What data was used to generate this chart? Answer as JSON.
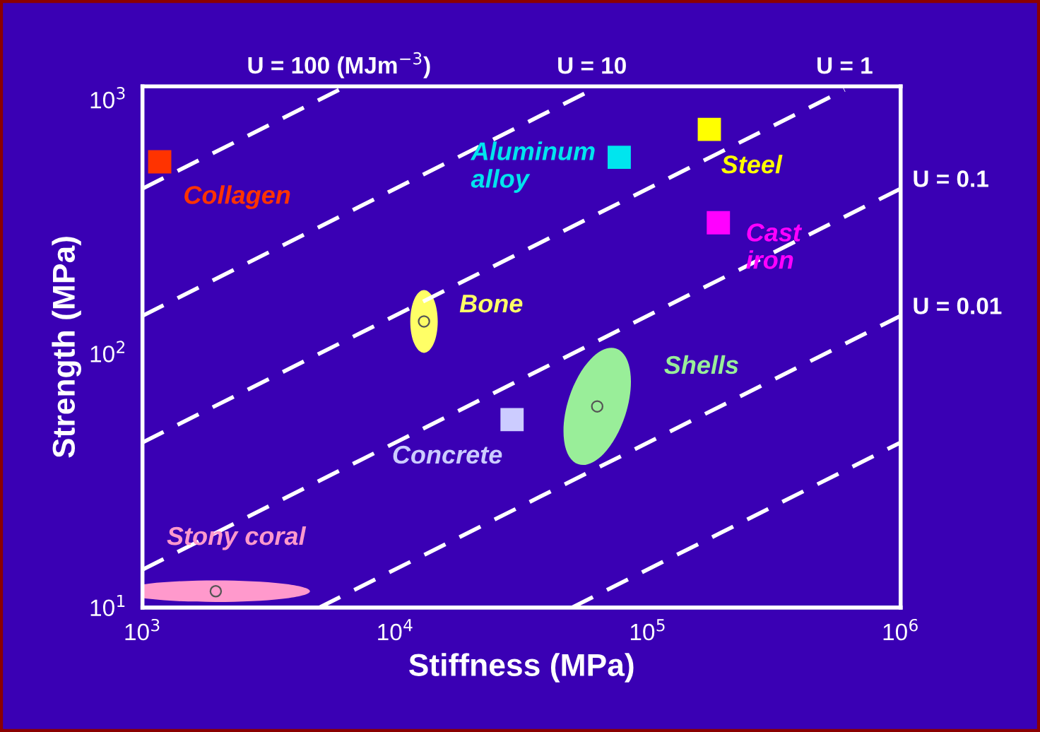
{
  "chart_data": {
    "type": "scatter",
    "xlabel": "Stiffness (MPa)",
    "ylabel": "Strength (MPa)",
    "log": "xy",
    "grid": false,
    "legend": false,
    "xlim": [
      1000,
      1000000
    ],
    "ylim": [
      10,
      1130
    ],
    "xticks": [
      {
        "value": 1000,
        "label": "10$^{3}$"
      },
      {
        "value": 10000,
        "label": "10$^{4}$"
      },
      {
        "value": 100000,
        "label": "10$^{5}$"
      },
      {
        "value": 1000000,
        "label": "10$^{6}$"
      }
    ],
    "yticks": [
      {
        "value": 10,
        "label": "10$^{1}$"
      },
      {
        "value": 100,
        "label": "10$^{2}$"
      },
      {
        "value": 1000,
        "label": "10$^{3}$"
      }
    ],
    "series": [
      {
        "type": "line",
        "name": "U = 100 (MJm$^{−3}$)",
        "color": "#ffffff",
        "line_style": "dashed",
        "x": [
          1000,
          6000
        ],
        "values": [
          447,
          1095
        ]
      },
      {
        "type": "line",
        "name": "U = 10",
        "color": "#ffffff",
        "line_style": "dashed",
        "x": [
          1000,
          60000
        ],
        "values": [
          141,
          1095
        ]
      },
      {
        "type": "line",
        "name": "U = 1",
        "color": "#ffffff",
        "line_style": "dashed",
        "x": [
          1000,
          600000
        ],
        "values": [
          44.7,
          1095
        ]
      },
      {
        "type": "line",
        "name": "U = 0.1",
        "color": "#ffffff",
        "line_style": "dashed",
        "x": [
          1000,
          1000000
        ],
        "values": [
          14.1,
          447
        ]
      },
      {
        "type": "line",
        "name": "U = 0.01",
        "color": "#ffffff",
        "line_style": "dashed",
        "x": [
          5000,
          1000000
        ],
        "values": [
          10,
          141
        ]
      },
      {
        "type": "line",
        "color": "#ffffff",
        "line_style": "dashed",
        "x": [
          50000,
          1000000
        ],
        "values": [
          10,
          44.7
        ]
      },
      {
        "name": "Collagen",
        "color": "#ff3300",
        "marker": "square",
        "x": [
          1170
        ],
        "values": [
          570
        ]
      },
      {
        "name": "Aluminum\nalloy",
        "color": "#00e5ee",
        "marker": "square",
        "x": [
          77000
        ],
        "values": [
          594
        ]
      },
      {
        "name": "Steel",
        "color": "#ffff00",
        "marker": "square",
        "x": [
          175000
        ],
        "values": [
          765
        ]
      },
      {
        "name": "Cast\niron",
        "color": "#ff00ff",
        "marker": "square",
        "x": [
          190000
        ],
        "values": [
          328
        ]
      },
      {
        "name": "Bone",
        "color": "#ffff66",
        "x": [
          13000
        ],
        "values": [
          134
        ]
      },
      {
        "name": "Shells",
        "color": "#99ee99",
        "x": [
          63000
        ],
        "values": [
          62
        ]
      },
      {
        "name": "Concrete",
        "color": "#ccccff",
        "marker": "square",
        "x": [
          29000
        ],
        "values": [
          55
        ]
      },
      {
        "name": "Stony coral",
        "color": "#ff99cc",
        "x": [
          1950
        ],
        "values": [
          11.6
        ]
      }
    ]
  }
}
